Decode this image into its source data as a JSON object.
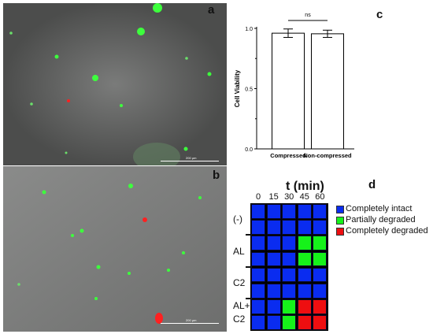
{
  "panels": {
    "a": {
      "letter": "a",
      "scale_bar": "200 µm"
    },
    "b": {
      "letter": "b",
      "scale_bar": "200 µm"
    },
    "c": {
      "letter": "c"
    },
    "d": {
      "letter": "d"
    }
  },
  "chart_data": {
    "type": "bar",
    "categories": [
      "Compressed",
      "Non-compressed"
    ],
    "values": [
      0.96,
      0.955
    ],
    "errors": [
      0.035,
      0.03
    ],
    "ylabel": "Cell Viability",
    "xlabel": "",
    "ylim": [
      0.0,
      1.0
    ],
    "yticks": [
      "0.0",
      "0.5",
      "1.0"
    ],
    "significance": "ns",
    "colors": {
      "bar_fill": "#ffffff",
      "bar_edge": "#000000"
    }
  },
  "heatmap": {
    "title": "t (min)",
    "columns": [
      "0",
      "15",
      "30",
      "45",
      "60"
    ],
    "row_groups": [
      {
        "label": "(-)",
        "rows": [
          [
            "intact",
            "intact",
            "intact",
            "intact",
            "intact"
          ],
          [
            "intact",
            "intact",
            "intact",
            "intact",
            "intact"
          ]
        ]
      },
      {
        "label": "AL",
        "rows": [
          [
            "intact",
            "intact",
            "intact",
            "partial",
            "partial"
          ],
          [
            "intact",
            "intact",
            "intact",
            "partial",
            "partial"
          ]
        ]
      },
      {
        "label": "C2",
        "rows": [
          [
            "intact",
            "intact",
            "intact",
            "intact",
            "intact"
          ],
          [
            "intact",
            "intact",
            "intact",
            "intact",
            "intact"
          ]
        ]
      },
      {
        "label_line1": "AL+",
        "label_line2": "C2",
        "rows": [
          [
            "intact",
            "intact",
            "partial",
            "complete",
            "complete"
          ],
          [
            "intact",
            "intact",
            "partial",
            "complete",
            "complete"
          ]
        ]
      }
    ],
    "legend": [
      {
        "key": "intact",
        "label": "Completely intact",
        "color": "#0a2cf0"
      },
      {
        "key": "partial",
        "label": "Partially degraded",
        "color": "#16f21a"
      },
      {
        "key": "complete",
        "label": "Completely degraded",
        "color": "#ee0e10"
      }
    ]
  }
}
